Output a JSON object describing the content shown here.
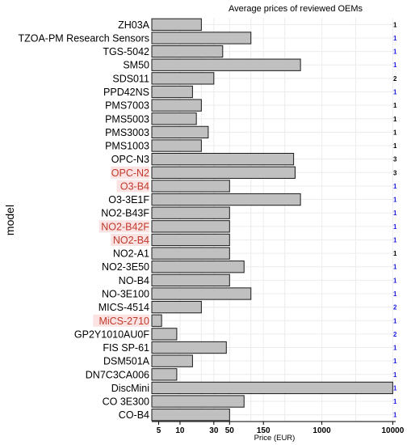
{
  "chart_data": {
    "type": "bar",
    "orientation": "horizontal",
    "title": "Average prices of reviewed OEMs",
    "xlabel": "Price (EUR)",
    "ylabel": "model",
    "x_scale": "log",
    "xlim": [
      4,
      11000
    ],
    "x_ticks": [
      5,
      10,
      30,
      50,
      150,
      1000,
      10000
    ],
    "grid": true,
    "bar_color": "#c0c0c0",
    "highlight_label_color": "#c0392b",
    "highlight_label_bg": "#fbe3e3",
    "count_color_default": "#000000",
    "count_color_alt": "#1a1adf",
    "categories": [
      "ZH03A",
      "TZOA-PM Research Sensors",
      "TGS-5042",
      "SM50",
      "SDS011",
      "PPD42NS",
      "PMS7003",
      "PMS5003",
      "PMS3003",
      "PMS1003",
      "OPC-N3",
      "OPC-N2",
      "O3-B4",
      "O3-3E1F",
      "NO2-B43F",
      "NO2-B42F",
      "NO2-B4",
      "NO2-A1",
      "NO2-3E50",
      "NO-B4",
      "NO-3E100",
      "MICS-4514",
      "MiCS-2710",
      "GP2Y1010AU0F",
      "FIS SP-61",
      "DSM501A",
      "DN7C3CA006",
      "DiscMini",
      "CO 3E300",
      "CO-B4"
    ],
    "values": [
      20,
      100,
      40,
      500,
      30,
      15,
      20,
      17,
      25,
      20,
      400,
      420,
      50,
      500,
      50,
      50,
      50,
      50,
      80,
      50,
      100,
      20,
      5.5,
      9,
      45,
      15,
      9,
      10000,
      80,
      50
    ],
    "counts": [
      "1",
      "1",
      "1",
      "1",
      "2",
      "1",
      "1",
      "1",
      "1",
      "1",
      "3",
      "3",
      "1",
      "1",
      "1",
      "1",
      "1",
      "1",
      "1",
      "1",
      "1",
      "2",
      "1",
      "2",
      "1",
      "1",
      "1",
      "1",
      "1",
      "1"
    ],
    "count_alt_color": [
      false,
      true,
      true,
      true,
      false,
      true,
      false,
      false,
      false,
      false,
      false,
      false,
      true,
      true,
      true,
      true,
      true,
      false,
      true,
      true,
      true,
      true,
      true,
      true,
      true,
      true,
      true,
      true,
      true,
      true
    ],
    "highlighted": [
      false,
      false,
      false,
      false,
      false,
      false,
      false,
      false,
      false,
      false,
      false,
      true,
      true,
      false,
      false,
      true,
      true,
      false,
      false,
      false,
      false,
      false,
      true,
      false,
      false,
      false,
      false,
      false,
      false,
      false
    ]
  }
}
